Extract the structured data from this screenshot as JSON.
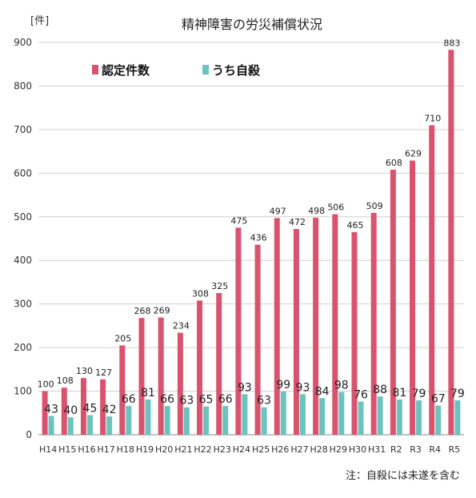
{
  "chart_data": {
    "type": "bar",
    "title": "精神障害の労災補償状況",
    "unit_label": "[件]",
    "ylim": [
      0,
      900
    ],
    "y_ticks": [
      0,
      100,
      200,
      300,
      400,
      500,
      600,
      700,
      800,
      900
    ],
    "grid": true,
    "legend_position": "top-left",
    "categories": [
      "H14",
      "H15",
      "H16",
      "H17",
      "H18",
      "H19",
      "H20",
      "H21",
      "H22",
      "H23",
      "H24",
      "H25",
      "H26",
      "H27",
      "H28",
      "H29",
      "H30",
      "H31",
      "R2",
      "R3",
      "R4",
      "R5"
    ],
    "series": [
      {
        "name": "認定件数",
        "color": "#d9536f",
        "values": [
          100,
          108,
          130,
          127,
          205,
          268,
          269,
          234,
          308,
          325,
          475,
          436,
          497,
          472,
          498,
          506,
          465,
          509,
          608,
          629,
          710,
          883
        ]
      },
      {
        "name": "うち自殺",
        "color": "#6cc3bd",
        "values": [
          43,
          40,
          45,
          42,
          66,
          81,
          66,
          63,
          65,
          66,
          93,
          63,
          99,
          93,
          84,
          98,
          76,
          88,
          81,
          79,
          67,
          79
        ]
      }
    ],
    "note": "注：自殺には未遂を含む"
  }
}
